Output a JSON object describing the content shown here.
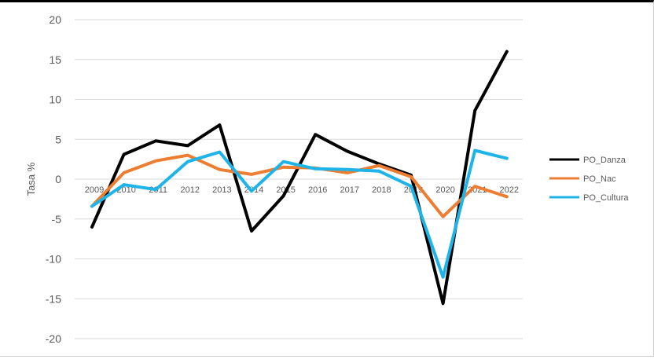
{
  "chart_data": {
    "type": "line",
    "title": "",
    "xlabel": "",
    "ylabel": "Tasa %",
    "ylim": [
      -20,
      20
    ],
    "yticks": [
      20,
      15,
      10,
      5,
      0,
      -5,
      -10,
      -15,
      -20
    ],
    "categories": [
      "2009",
      "2010",
      "2011",
      "2012",
      "2013",
      "2014",
      "2015",
      "2016",
      "2017",
      "2018",
      "2019",
      "2020",
      "2021",
      "2022"
    ],
    "grid": true,
    "legend": "right",
    "series": [
      {
        "name": "PO_Danza",
        "color": "#000000",
        "values": [
          -6.0,
          3.1,
          4.8,
          4.2,
          6.8,
          -6.5,
          -2.1,
          5.6,
          3.5,
          1.9,
          0.5,
          -15.6,
          8.6,
          16.0
        ]
      },
      {
        "name": "PO_Nac",
        "color": "#ed7d31",
        "values": [
          -3.4,
          0.8,
          2.3,
          3.0,
          1.2,
          0.6,
          1.5,
          1.4,
          0.8,
          1.7,
          0.3,
          -4.7,
          -0.9,
          -2.2
        ]
      },
      {
        "name": "PO_Cultura",
        "color": "#1fb4e8",
        "values": [
          -3.4,
          -0.7,
          -1.3,
          2.2,
          3.4,
          -1.5,
          2.2,
          1.3,
          1.2,
          1.0,
          -0.9,
          -12.3,
          3.6,
          2.6
        ]
      }
    ]
  }
}
